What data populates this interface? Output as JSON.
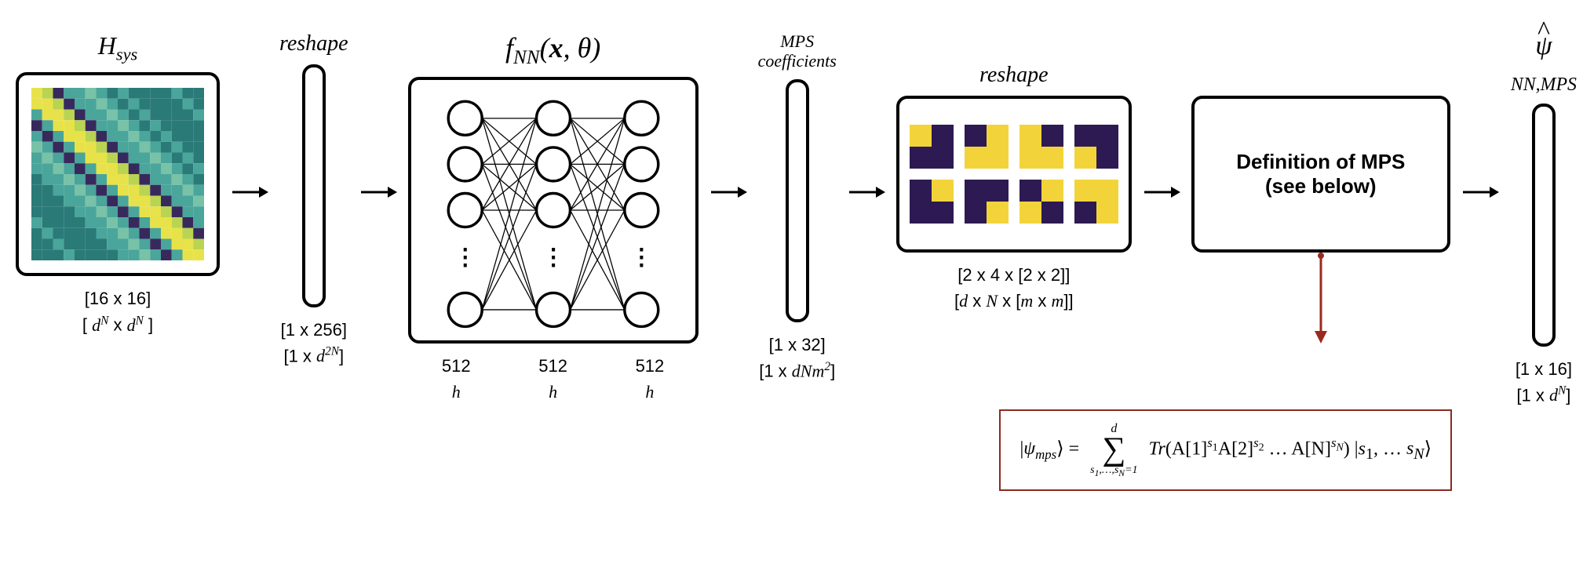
{
  "stage_hsys": {
    "title_html": "H<span class=\"sub\">sys</span>",
    "dims_concrete": "[16 x 16]",
    "dims_symbolic_html": "[ <span class=\"ital\">d<span class=\"sup\">N</span></span> x <span class=\"ital\">d<span class=\"sup\">N</span></span> ]",
    "heatmap": {
      "grid": 16,
      "palette": {
        "bg_low": "#2a7a78",
        "bg_mid": "#4aa59b",
        "bg_high": "#78c2a8",
        "hot1": "#e8e24a",
        "hot2": "#b8d452",
        "dark": "#38295c"
      }
    }
  },
  "reshape1": {
    "label": "reshape",
    "dims_concrete": "[1 x 256]",
    "dims_symbolic_html": "[1 x <span class=\"ital\">d<span class=\"sup\">2N</span></span>]"
  },
  "nn": {
    "title_html": "f<span class=\"sub\">NN</span>(<b>x</b>, &theta;)",
    "layers": 3,
    "visible_nodes_per_layer": 4,
    "layer_width_label": "512",
    "layer_width_symbol_html": "<span class=\"ital\">h</span>",
    "node_stroke": "#000000",
    "node_radius": 22,
    "dots": "⋮"
  },
  "mps_coeff": {
    "label_line1": "MPS",
    "label_line2": "coefficients",
    "dims_concrete": "[1 x 32]",
    "dims_symbolic_html": "[1 x <span class=\"ital\">dNm</span><span class=\"sup ital\">2</span>]"
  },
  "reshape2": {
    "label": "reshape",
    "dims_concrete": "[2 x 4 x [2 x 2]]",
    "dims_symbolic_html": "[<span class=\"ital\">d</span> x <span class=\"ital\">N</span> x [<span class=\"ital\">m</span> x <span class=\"ital\">m</span>]]",
    "tensors": {
      "rows": 2,
      "cols": 4,
      "cell_grid": 2,
      "hi": "#f2d43a",
      "lo": "#2d1a52",
      "patterns": [
        [
          [
            1,
            0
          ],
          [
            0,
            0
          ]
        ],
        [
          [
            0,
            1
          ],
          [
            1,
            1
          ]
        ],
        [
          [
            1,
            0
          ],
          [
            1,
            1
          ]
        ],
        [
          [
            0,
            0
          ],
          [
            1,
            0
          ]
        ],
        [
          [
            0,
            1
          ],
          [
            0,
            0
          ]
        ],
        [
          [
            0,
            0
          ],
          [
            0,
            1
          ]
        ],
        [
          [
            0,
            1
          ],
          [
            1,
            0
          ]
        ],
        [
          [
            1,
            1
          ],
          [
            0,
            1
          ]
        ]
      ]
    }
  },
  "mps_def": {
    "line1": "Definition of MPS",
    "line2": "(see below)",
    "arrow_color": "#9a2a20",
    "equation_border": "#8a2a22",
    "equation_html": "|<span style=\"font-style:italic\">&psi;<span class=\"sub\">mps</span></span>&rang; = <span class=\"sumwrap\"><span class=\"sumtop\">d</span><span class=\"sumsym\">&sum;</span><span class=\"sumbot\">s<sub>1</sub>,&hellip;,s<sub>N</sub>=1</span></span> <span style=\"font-style:italic\">Tr</span>(A[1]<span class=\"sup\"><i>s</i><sub>1</sub></span>A[2]<span class=\"sup\"><i>s</i><sub>2</sub></span> &hellip; A[N]<span class=\"sup\"><i>s<sub>N</sub></i></span>) |<span style=\"font-style:italic\">s</span><sub>1</sub>, &hellip; <span style=\"font-style:italic\">s<sub>N</sub></span>&rang;"
  },
  "psi_out": {
    "title_html": "<span class=\"hat\">&psi;</span><span class=\"sub\">NN,MPS</span>",
    "dims_concrete": "[1 x 16]",
    "dims_symbolic_html": "[1 x <span class=\"ital\">d<span class=\"sup\">N</span></span>]"
  },
  "arrow": {
    "stroke": "#000000",
    "width": 3
  }
}
